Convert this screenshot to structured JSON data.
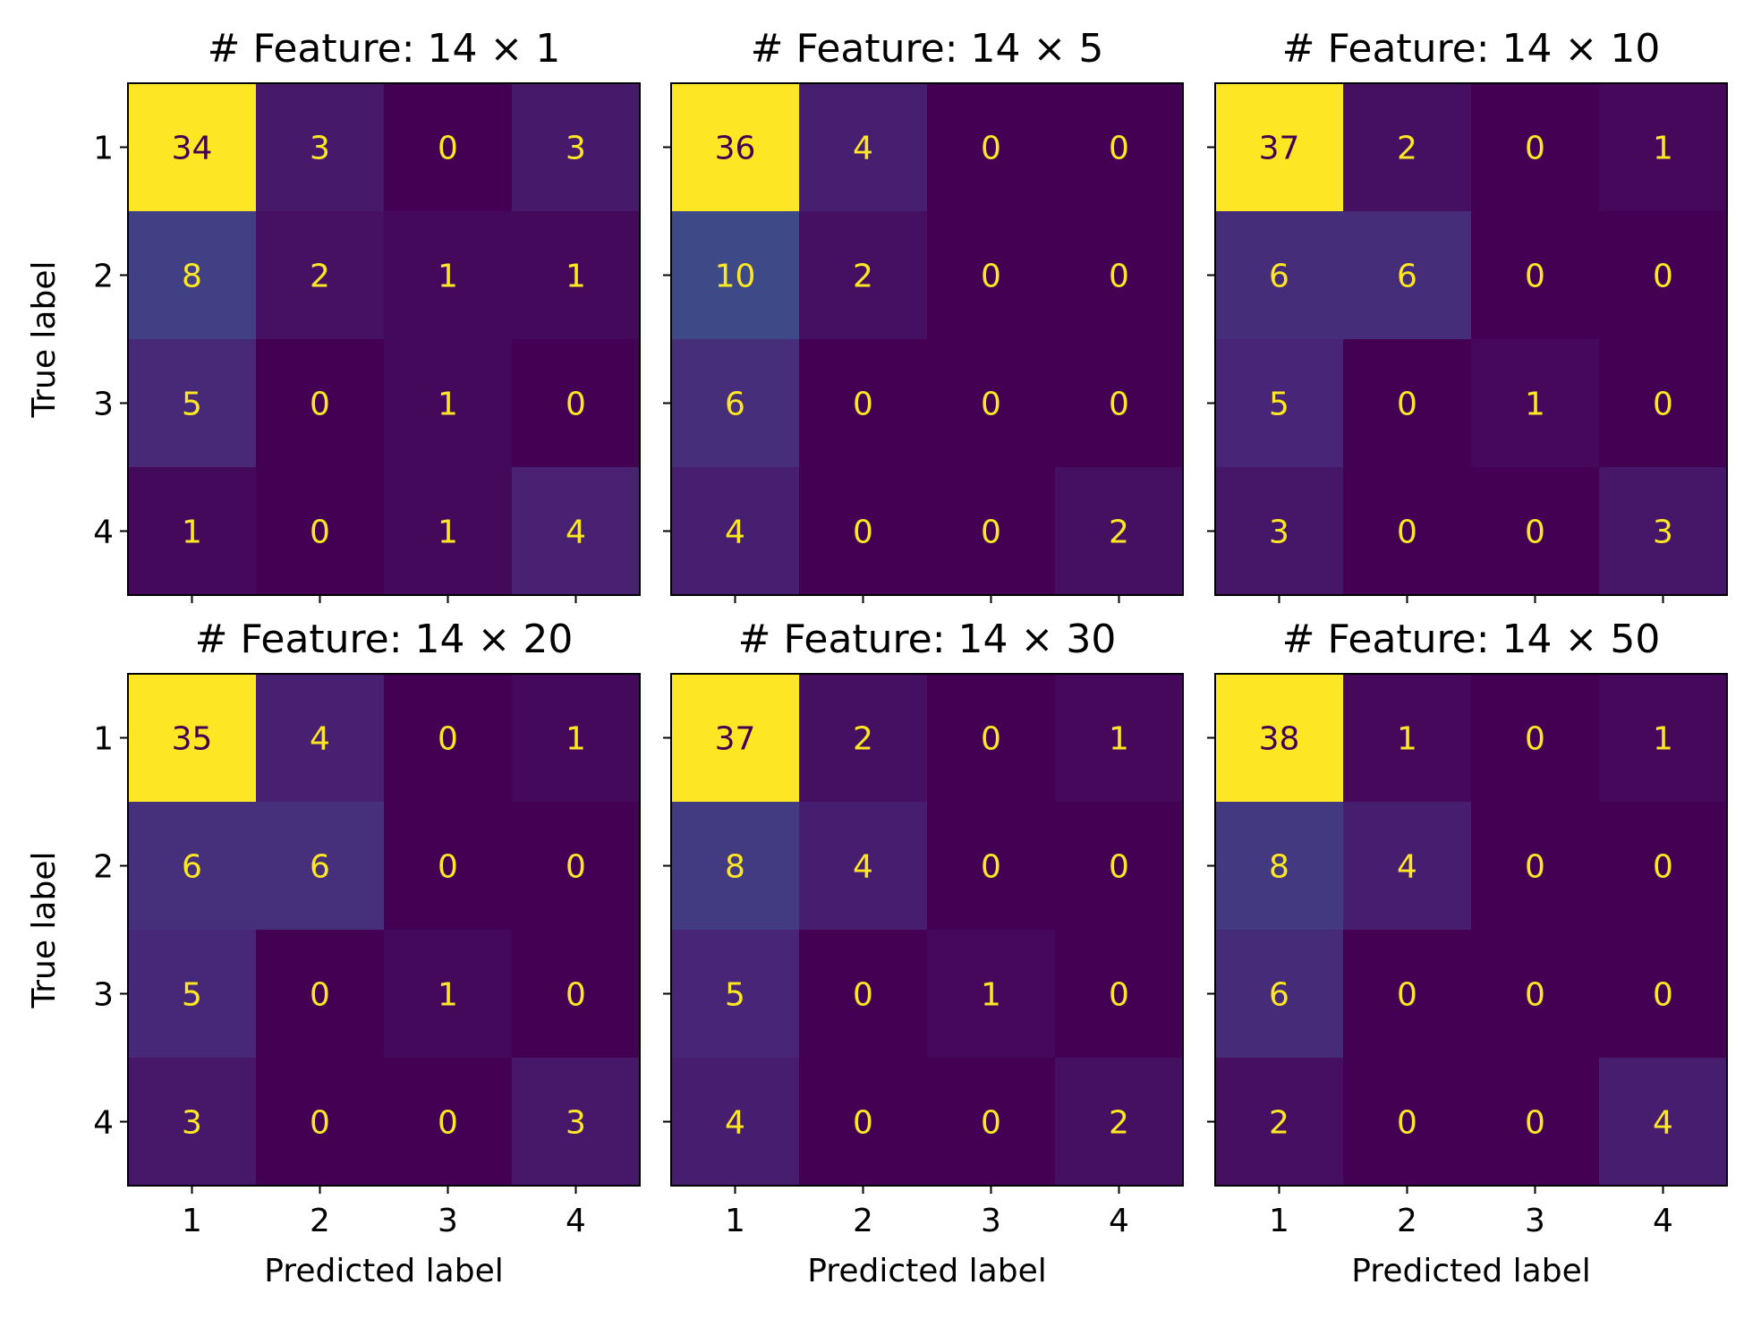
{
  "chart_data": [
    {
      "type": "heatmap",
      "title": "# Feature: 14 × 1",
      "xlabel": "",
      "ylabel": "True label",
      "x_ticks": [
        "1",
        "2",
        "3",
        "4"
      ],
      "y_ticks": [
        "1",
        "2",
        "3",
        "4"
      ],
      "matrix": [
        [
          34,
          3,
          0,
          3
        ],
        [
          8,
          2,
          1,
          1
        ],
        [
          5,
          0,
          1,
          0
        ],
        [
          1,
          0,
          1,
          4
        ]
      ]
    },
    {
      "type": "heatmap",
      "title": "# Feature: 14 × 5",
      "xlabel": "",
      "ylabel": "",
      "x_ticks": [
        "1",
        "2",
        "3",
        "4"
      ],
      "y_ticks": [
        "1",
        "2",
        "3",
        "4"
      ],
      "matrix": [
        [
          36,
          4,
          0,
          0
        ],
        [
          10,
          2,
          0,
          0
        ],
        [
          6,
          0,
          0,
          0
        ],
        [
          4,
          0,
          0,
          2
        ]
      ]
    },
    {
      "type": "heatmap",
      "title": "# Feature: 14 × 10",
      "xlabel": "",
      "ylabel": "",
      "x_ticks": [
        "1",
        "2",
        "3",
        "4"
      ],
      "y_ticks": [
        "1",
        "2",
        "3",
        "4"
      ],
      "matrix": [
        [
          37,
          2,
          0,
          1
        ],
        [
          6,
          6,
          0,
          0
        ],
        [
          5,
          0,
          1,
          0
        ],
        [
          3,
          0,
          0,
          3
        ]
      ]
    },
    {
      "type": "heatmap",
      "title": "# Feature: 14 × 20",
      "xlabel": "Predicted label",
      "ylabel": "True label",
      "x_ticks": [
        "1",
        "2",
        "3",
        "4"
      ],
      "y_ticks": [
        "1",
        "2",
        "3",
        "4"
      ],
      "matrix": [
        [
          35,
          4,
          0,
          1
        ],
        [
          6,
          6,
          0,
          0
        ],
        [
          5,
          0,
          1,
          0
        ],
        [
          3,
          0,
          0,
          3
        ]
      ]
    },
    {
      "type": "heatmap",
      "title": "# Feature: 14 × 30",
      "xlabel": "Predicted label",
      "ylabel": "",
      "x_ticks": [
        "1",
        "2",
        "3",
        "4"
      ],
      "y_ticks": [
        "1",
        "2",
        "3",
        "4"
      ],
      "matrix": [
        [
          37,
          2,
          0,
          1
        ],
        [
          8,
          4,
          0,
          0
        ],
        [
          5,
          0,
          1,
          0
        ],
        [
          4,
          0,
          0,
          2
        ]
      ]
    },
    {
      "type": "heatmap",
      "title": "# Feature: 14 × 50",
      "xlabel": "Predicted label",
      "ylabel": "",
      "x_ticks": [
        "1",
        "2",
        "3",
        "4"
      ],
      "y_ticks": [
        "1",
        "2",
        "3",
        "4"
      ],
      "matrix": [
        [
          38,
          1,
          0,
          1
        ],
        [
          8,
          4,
          0,
          0
        ],
        [
          6,
          0,
          0,
          0
        ],
        [
          2,
          0,
          0,
          4
        ]
      ]
    }
  ],
  "colormap": "viridis",
  "colors": {
    "low_text": "#fde725",
    "high_text": "#440154",
    "frame": "#000000"
  }
}
